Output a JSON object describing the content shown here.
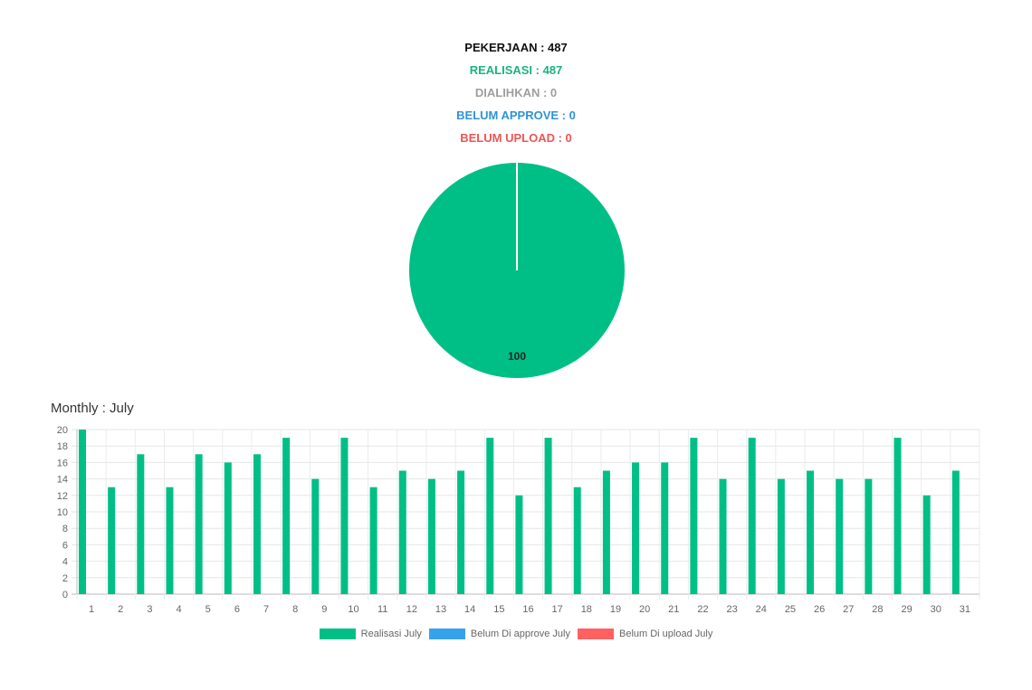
{
  "summary": {
    "pekerjaan": "PEKERJAAN : 487",
    "realisasi": "REALISASI : 487",
    "dialihkan": "DIALIHKAN : 0",
    "belum_approve": "BELUM APPROVE : 0",
    "belum_upload": "BELUM UPLOAD : 0"
  },
  "colors": {
    "pekerjaan": "#111111",
    "realisasi": "#19b37f",
    "dialihkan": "#9e9e9e",
    "belum_approve": "#2f93d6",
    "belum_upload": "#f05454",
    "bar_realisasi": "#00bf86",
    "bar_approve": "#36a2eb",
    "bar_upload": "#ff6161",
    "pie": "#00bf86"
  },
  "monthly_title": "Monthly : July",
  "chart_data": [
    {
      "type": "pie",
      "slices": [
        {
          "value": 100,
          "color": "#00bf86",
          "label": "100"
        }
      ]
    },
    {
      "type": "bar",
      "categories": [
        "1",
        "2",
        "3",
        "4",
        "5",
        "6",
        "7",
        "8",
        "9",
        "10",
        "11",
        "12",
        "13",
        "14",
        "15",
        "16",
        "17",
        "18",
        "19",
        "20",
        "21",
        "22",
        "23",
        "24",
        "25",
        "26",
        "27",
        "28",
        "29",
        "30",
        "31"
      ],
      "series": [
        {
          "name": "Realisasi July",
          "color": "#00bf86",
          "values": [
            20,
            13,
            17,
            13,
            17,
            16,
            17,
            19,
            14,
            19,
            13,
            15,
            14,
            15,
            19,
            12,
            19,
            13,
            15,
            16,
            16,
            19,
            14,
            19,
            14,
            15,
            14,
            14,
            19,
            12,
            15
          ]
        },
        {
          "name": "Belum Di approve July",
          "color": "#36a2eb",
          "values": [
            0,
            0,
            0,
            0,
            0,
            0,
            0,
            0,
            0,
            0,
            0,
            0,
            0,
            0,
            0,
            0,
            0,
            0,
            0,
            0,
            0,
            0,
            0,
            0,
            0,
            0,
            0,
            0,
            0,
            0,
            0
          ]
        },
        {
          "name": "Belum Di upload July",
          "color": "#ff6161",
          "values": [
            0,
            0,
            0,
            0,
            0,
            0,
            0,
            0,
            0,
            0,
            0,
            0,
            0,
            0,
            0,
            0,
            0,
            0,
            0,
            0,
            0,
            0,
            0,
            0,
            0,
            0,
            0,
            0,
            0,
            0,
            0
          ]
        }
      ],
      "yticks": [
        "0",
        "2",
        "4",
        "6",
        "8",
        "10",
        "12",
        "14",
        "16",
        "18",
        "20"
      ],
      "ylim": [
        0,
        20
      ],
      "grid": true,
      "legend_position": "bottom"
    }
  ],
  "legend": [
    {
      "label": "Realisasi July",
      "color": "#00bf86"
    },
    {
      "label": "Belum Di approve July",
      "color": "#36a2eb"
    },
    {
      "label": "Belum Di upload July",
      "color": "#ff6161"
    }
  ]
}
